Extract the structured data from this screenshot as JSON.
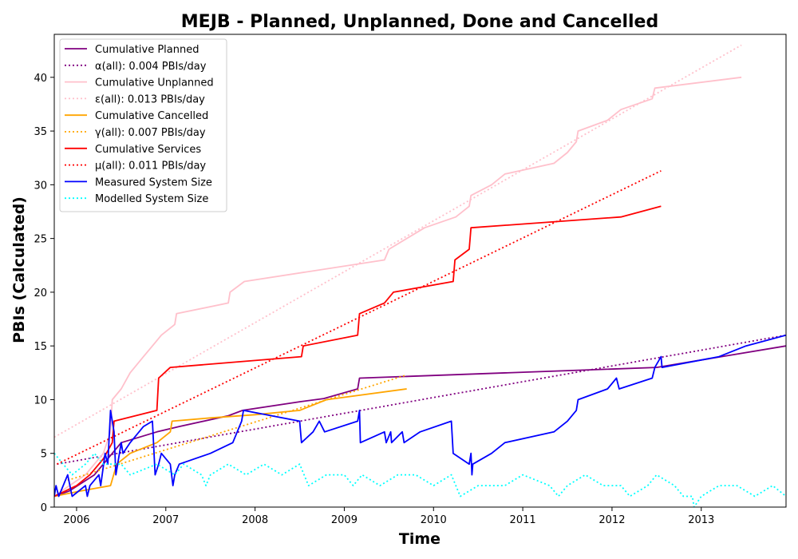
{
  "chart_data": {
    "type": "line",
    "title": "MEJB - Planned, Unplanned, Done  and Cancelled",
    "xlabel": "Time",
    "ylabel": "PBIs (Calculated)",
    "xlim": [
      2005.75,
      2013.95
    ],
    "ylim": [
      0,
      44
    ],
    "x_ticks": [
      2006,
      2007,
      2008,
      2009,
      2010,
      2011,
      2012,
      2013
    ],
    "x_tick_labels": [
      "2006",
      "2007",
      "2008",
      "2009",
      "2010",
      "2011",
      "2012",
      "2013"
    ],
    "y_ticks": [
      0,
      5,
      10,
      15,
      20,
      25,
      30,
      35,
      40
    ],
    "y_tick_labels": [
      "0",
      "5",
      "10",
      "15",
      "20",
      "25",
      "30",
      "35",
      "40"
    ],
    "grid": false,
    "legend_position": "upper-left",
    "series": [
      {
        "name": "Cumulative Planned",
        "color": "#800080",
        "style": "solid",
        "points": [
          [
            2005.75,
            1
          ],
          [
            2005.92,
            1.5
          ],
          [
            2006.2,
            3
          ],
          [
            2006.4,
            5
          ],
          [
            2006.5,
            6
          ],
          [
            2006.9,
            7
          ],
          [
            2007.15,
            7.5
          ],
          [
            2007.7,
            8.5
          ],
          [
            2007.86,
            9
          ],
          [
            2008.5,
            9.8
          ],
          [
            2008.77,
            10.1
          ],
          [
            2009.15,
            11
          ],
          [
            2009.17,
            12
          ],
          [
            2012.5,
            13
          ],
          [
            2013.95,
            15
          ]
        ]
      },
      {
        "name": "α(all): 0.004 PBIs/day",
        "color": "#800080",
        "style": "dotted",
        "points": [
          [
            2005.78,
            4
          ],
          [
            2013.95,
            16
          ]
        ]
      },
      {
        "name": "Cumulative Unplanned",
        "color": "#ffc0cb",
        "style": "solid",
        "points": [
          [
            2005.75,
            1
          ],
          [
            2005.92,
            2
          ],
          [
            2006.1,
            3
          ],
          [
            2006.3,
            5
          ],
          [
            2006.38,
            7
          ],
          [
            2006.4,
            10
          ],
          [
            2006.5,
            11
          ],
          [
            2006.6,
            12.5
          ],
          [
            2006.75,
            14
          ],
          [
            2006.85,
            15
          ],
          [
            2006.95,
            16
          ],
          [
            2007.1,
            17
          ],
          [
            2007.12,
            18
          ],
          [
            2007.7,
            19
          ],
          [
            2007.72,
            20
          ],
          [
            2007.88,
            21
          ],
          [
            2009.45,
            23
          ],
          [
            2009.5,
            24
          ],
          [
            2009.9,
            26
          ],
          [
            2010.25,
            27
          ],
          [
            2010.4,
            28
          ],
          [
            2010.42,
            29
          ],
          [
            2010.65,
            30
          ],
          [
            2010.8,
            31
          ],
          [
            2011.35,
            32
          ],
          [
            2011.5,
            33
          ],
          [
            2011.6,
            34
          ],
          [
            2011.62,
            35
          ],
          [
            2011.95,
            36
          ],
          [
            2012.1,
            37
          ],
          [
            2012.45,
            38
          ],
          [
            2012.48,
            39
          ],
          [
            2013.45,
            40
          ]
        ]
      },
      {
        "name": "ε(all): 0.013 PBIs/day",
        "color": "#ffc0cb",
        "style": "dotted",
        "points": [
          [
            2005.75,
            6.5
          ],
          [
            2013.45,
            43
          ]
        ]
      },
      {
        "name": "Cumulative Cancelled",
        "color": "#ffa500",
        "style": "solid",
        "points": [
          [
            2005.75,
            1
          ],
          [
            2006.05,
            1.5
          ],
          [
            2006.38,
            2
          ],
          [
            2006.45,
            4
          ],
          [
            2006.6,
            5
          ],
          [
            2006.9,
            6
          ],
          [
            2007.05,
            7
          ],
          [
            2007.07,
            8
          ],
          [
            2007.5,
            8.3
          ],
          [
            2008.0,
            8.6
          ],
          [
            2008.5,
            9
          ],
          [
            2008.8,
            10
          ],
          [
            2009.7,
            11
          ]
        ]
      },
      {
        "name": "γ(all): 0.007 PBIs/day",
        "color": "#ffa500",
        "style": "dotted",
        "points": [
          [
            2005.9,
            2.5
          ],
          [
            2009.7,
            12.3
          ]
        ]
      },
      {
        "name": "Cumulative Services",
        "color": "#ff0000",
        "style": "solid",
        "points": [
          [
            2005.75,
            1
          ],
          [
            2006.0,
            2
          ],
          [
            2006.15,
            3
          ],
          [
            2006.3,
            4.5
          ],
          [
            2006.4,
            6
          ],
          [
            2006.42,
            8
          ],
          [
            2006.9,
            9
          ],
          [
            2006.92,
            12
          ],
          [
            2007.05,
            13
          ],
          [
            2008.52,
            14
          ],
          [
            2008.54,
            15
          ],
          [
            2009.15,
            16
          ],
          [
            2009.17,
            18
          ],
          [
            2009.45,
            19
          ],
          [
            2009.55,
            20
          ],
          [
            2010.22,
            21
          ],
          [
            2010.24,
            23
          ],
          [
            2010.4,
            24
          ],
          [
            2010.42,
            26
          ],
          [
            2012.1,
            27
          ],
          [
            2012.55,
            28
          ]
        ]
      },
      {
        "name": "μ(all): 0.011 PBIs/day",
        "color": "#ff0000",
        "style": "dotted",
        "points": [
          [
            2005.78,
            4
          ],
          [
            2012.55,
            31.3
          ]
        ]
      },
      {
        "name": "Measured System Size",
        "color": "#0000ff",
        "style": "solid",
        "points": [
          [
            2005.75,
            1
          ],
          [
            2005.77,
            2
          ],
          [
            2005.8,
            1
          ],
          [
            2005.9,
            3
          ],
          [
            2005.95,
            1
          ],
          [
            2006.1,
            2
          ],
          [
            2006.12,
            1
          ],
          [
            2006.15,
            2
          ],
          [
            2006.25,
            3
          ],
          [
            2006.27,
            2
          ],
          [
            2006.32,
            5
          ],
          [
            2006.35,
            4
          ],
          [
            2006.38,
            9
          ],
          [
            2006.42,
            7
          ],
          [
            2006.44,
            3
          ],
          [
            2006.5,
            6
          ],
          [
            2006.52,
            5
          ],
          [
            2006.6,
            6
          ],
          [
            2006.75,
            7.5
          ],
          [
            2006.85,
            8
          ],
          [
            2006.88,
            3
          ],
          [
            2006.92,
            4
          ],
          [
            2006.95,
            5
          ],
          [
            2007.05,
            4
          ],
          [
            2007.08,
            2
          ],
          [
            2007.1,
            3
          ],
          [
            2007.15,
            4
          ],
          [
            2007.5,
            5
          ],
          [
            2007.75,
            6
          ],
          [
            2007.85,
            8
          ],
          [
            2007.87,
            9
          ],
          [
            2008.5,
            8
          ],
          [
            2008.52,
            6
          ],
          [
            2008.65,
            7
          ],
          [
            2008.72,
            8
          ],
          [
            2008.78,
            7
          ],
          [
            2009.15,
            8
          ],
          [
            2009.17,
            9
          ],
          [
            2009.18,
            6
          ],
          [
            2009.45,
            7
          ],
          [
            2009.47,
            6
          ],
          [
            2009.52,
            7
          ],
          [
            2009.53,
            6
          ],
          [
            2009.65,
            7
          ],
          [
            2009.67,
            6
          ],
          [
            2009.85,
            7
          ],
          [
            2010.2,
            8
          ],
          [
            2010.22,
            5
          ],
          [
            2010.4,
            4
          ],
          [
            2010.42,
            5
          ],
          [
            2010.43,
            3
          ],
          [
            2010.44,
            4
          ],
          [
            2010.65,
            5
          ],
          [
            2010.8,
            6
          ],
          [
            2011.35,
            7
          ],
          [
            2011.5,
            8
          ],
          [
            2011.6,
            9
          ],
          [
            2011.62,
            10
          ],
          [
            2011.95,
            11
          ],
          [
            2012.05,
            12
          ],
          [
            2012.08,
            11
          ],
          [
            2012.45,
            12
          ],
          [
            2012.48,
            13
          ],
          [
            2012.55,
            14
          ],
          [
            2012.56,
            13
          ],
          [
            2013.2,
            14
          ],
          [
            2013.5,
            15
          ],
          [
            2013.95,
            16
          ]
        ]
      },
      {
        "name": "Modelled System Size",
        "color": "#00ffff",
        "style": "dotted",
        "points": [
          [
            2005.75,
            5
          ],
          [
            2005.85,
            4
          ],
          [
            2005.95,
            3
          ],
          [
            2006.1,
            4
          ],
          [
            2006.2,
            5
          ],
          [
            2006.3,
            4
          ],
          [
            2006.5,
            4
          ],
          [
            2006.6,
            3
          ],
          [
            2006.9,
            4
          ],
          [
            2007.1,
            3
          ],
          [
            2007.2,
            4
          ],
          [
            2007.4,
            3
          ],
          [
            2007.45,
            2
          ],
          [
            2007.5,
            3
          ],
          [
            2007.7,
            4
          ],
          [
            2007.9,
            3
          ],
          [
            2008.1,
            4
          ],
          [
            2008.3,
            3
          ],
          [
            2008.5,
            4
          ],
          [
            2008.6,
            2
          ],
          [
            2008.8,
            3
          ],
          [
            2009.0,
            3
          ],
          [
            2009.1,
            2
          ],
          [
            2009.2,
            3
          ],
          [
            2009.4,
            2
          ],
          [
            2009.6,
            3
          ],
          [
            2009.8,
            3
          ],
          [
            2010.0,
            2
          ],
          [
            2010.2,
            3
          ],
          [
            2010.3,
            1
          ],
          [
            2010.5,
            2
          ],
          [
            2010.8,
            2
          ],
          [
            2011.0,
            3
          ],
          [
            2011.3,
            2
          ],
          [
            2011.4,
            1
          ],
          [
            2011.5,
            2
          ],
          [
            2011.7,
            3
          ],
          [
            2011.9,
            2
          ],
          [
            2012.1,
            2
          ],
          [
            2012.2,
            1
          ],
          [
            2012.4,
            2
          ],
          [
            2012.5,
            3
          ],
          [
            2012.7,
            2
          ],
          [
            2012.8,
            1
          ],
          [
            2012.9,
            1
          ],
          [
            2012.92,
            0
          ],
          [
            2013.0,
            1
          ],
          [
            2013.2,
            2
          ],
          [
            2013.4,
            2
          ],
          [
            2013.6,
            1
          ],
          [
            2013.8,
            2
          ],
          [
            2013.95,
            1
          ]
        ]
      }
    ]
  }
}
